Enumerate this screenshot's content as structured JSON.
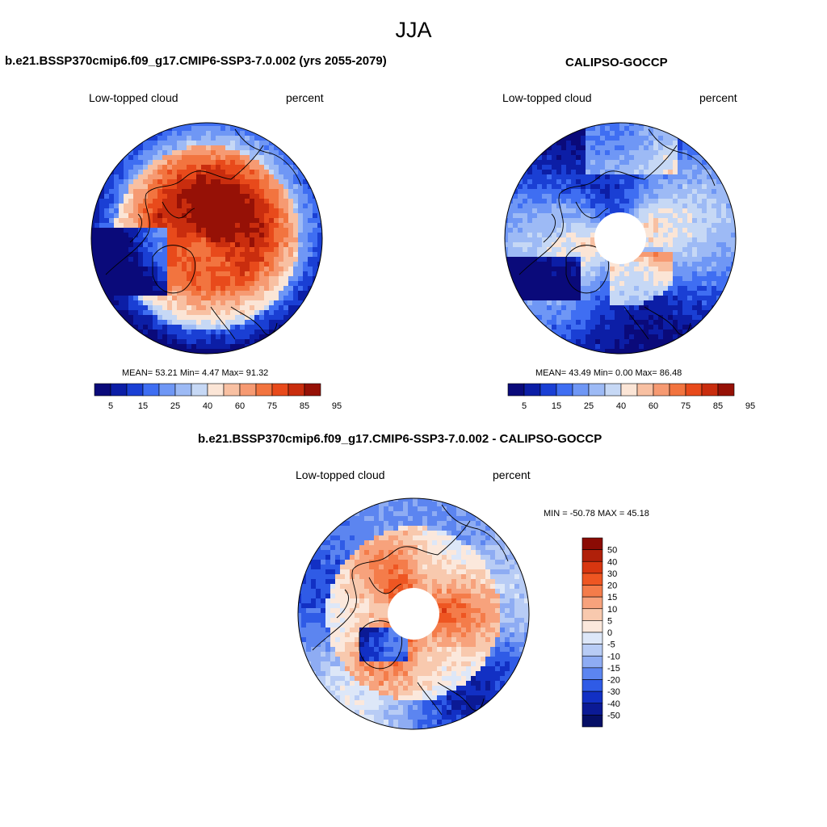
{
  "main_title": "JJA",
  "panels": [
    {
      "title": "b.e21.BSSP370cmip6.f09_g17.CMIP6-SSP3-7.0.002 (yrs 2055-2079)",
      "left_label": "Low-topped cloud",
      "right_label": "percent",
      "stats": "MEAN=  53.21  Min=   4.47  Max=  91.32",
      "polar_hole": false
    },
    {
      "title": "CALIPSO-GOCCP",
      "left_label": "Low-topped cloud",
      "right_label": "percent",
      "stats": "MEAN=  43.49  Min=   0.00  Max=  86.48",
      "polar_hole": true
    },
    {
      "title": "b.e21.BSSP370cmip6.f09_g17.CMIP6-SSP3-7.0.002 - CALIPSO-GOCCP",
      "left_label": "Low-topped cloud",
      "right_label": "percent",
      "stats": "MIN = -50.78 MAX =  45.18",
      "polar_hole": true
    }
  ],
  "colorbar_horizontal": {
    "labels": [
      "5",
      "15",
      "25",
      "40",
      "60",
      "75",
      "85",
      "95"
    ],
    "colors": [
      "#0a0a7a",
      "#0c1ea6",
      "#1a3fd4",
      "#3f6ef2",
      "#6f97f5",
      "#9dbaf5",
      "#c6d8f5",
      "#fbe5d6",
      "#f8c0a2",
      "#f69a72",
      "#f2743f",
      "#e84a1b",
      "#c92d0e",
      "#961106"
    ]
  },
  "colorbar_vertical": {
    "labels": [
      "50",
      "40",
      "30",
      "20",
      "15",
      "10",
      "5",
      "0",
      "-5",
      "-10",
      "-15",
      "-20",
      "-30",
      "-40",
      "-50"
    ],
    "colors": [
      "#8b0b04",
      "#b0200a",
      "#d83610",
      "#ee5622",
      "#f47c4a",
      "#f7a27c",
      "#f8c9ae",
      "#fbe8dc",
      "#dde7f8",
      "#b8ccf5",
      "#8eacf3",
      "#5c85f0",
      "#2f5be6",
      "#1230c4",
      "#0b1a95",
      "#060f66"
    ]
  }
}
